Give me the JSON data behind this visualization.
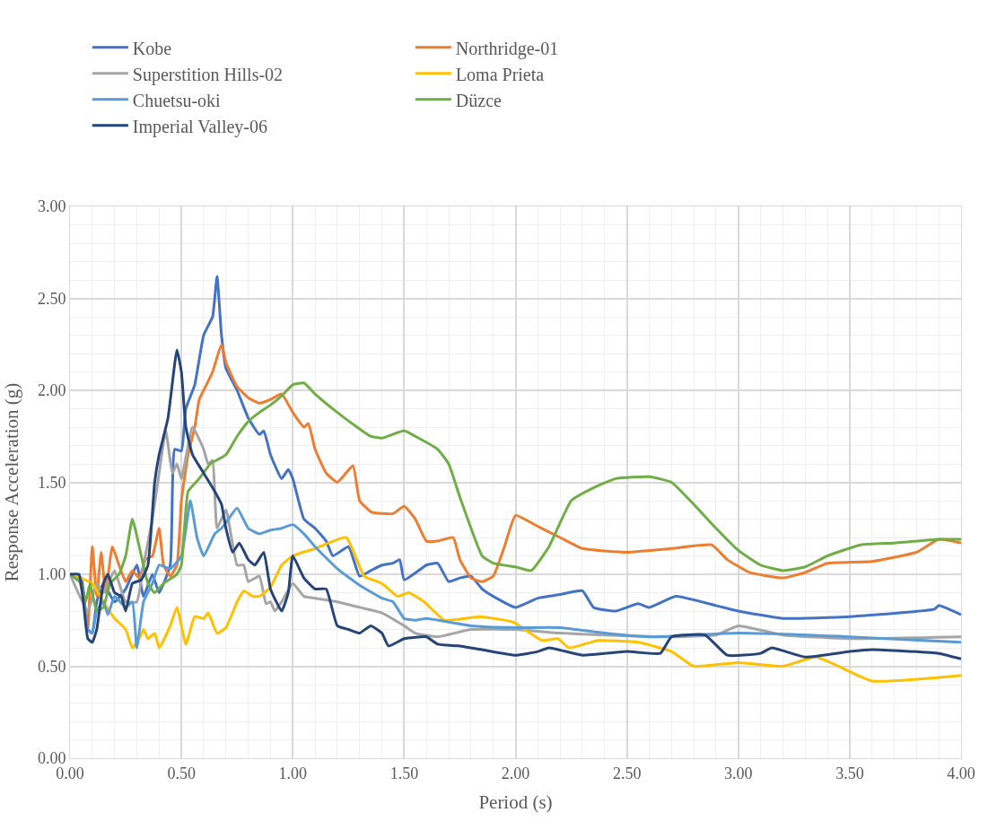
{
  "chart_data": {
    "type": "line",
    "xlabel": "Period (s)",
    "ylabel": "Response Acceleration (g)",
    "xlim": [
      0,
      4
    ],
    "ylim": [
      0,
      3
    ],
    "xticks": [
      {
        "value": 0,
        "label": "0.00"
      },
      {
        "value": 0.5,
        "label": "0.50"
      },
      {
        "value": 1,
        "label": "1.00"
      },
      {
        "value": 1.5,
        "label": "1.50"
      },
      {
        "value": 2,
        "label": "2.00"
      },
      {
        "value": 2.5,
        "label": "2.50"
      },
      {
        "value": 3,
        "label": "3.00"
      },
      {
        "value": 3.5,
        "label": "3.50"
      },
      {
        "value": 4,
        "label": "4.00"
      }
    ],
    "yticks": [
      {
        "value": 0,
        "label": "0.00"
      },
      {
        "value": 0.5,
        "label": "0.50"
      },
      {
        "value": 1,
        "label": "1.00"
      },
      {
        "value": 1.5,
        "label": "1.50"
      },
      {
        "value": 2,
        "label": "2.00"
      },
      {
        "value": 2.5,
        "label": "2.50"
      },
      {
        "value": 3,
        "label": "3.00"
      }
    ],
    "grid": true,
    "legend": "top",
    "marker": "none",
    "line_style": "solid",
    "series": [
      {
        "name": "Kobe",
        "color": "#4472c4",
        "x": [
          0,
          0.05,
          0.08,
          0.1,
          0.12,
          0.15,
          0.2,
          0.25,
          0.3,
          0.33,
          0.37,
          0.4,
          0.45,
          0.47,
          0.5,
          0.52,
          0.56,
          0.6,
          0.64,
          0.66,
          0.68,
          0.7,
          0.75,
          0.8,
          0.85,
          0.87,
          0.9,
          0.95,
          0.98,
          1.0,
          1.05,
          1.1,
          1.15,
          1.18,
          1.25,
          1.3,
          1.35,
          1.4,
          1.45,
          1.48,
          1.5,
          1.6,
          1.65,
          1.7,
          1.75,
          1.8,
          1.85,
          1.9,
          2.0,
          2.1,
          2.2,
          2.3,
          2.35,
          2.45,
          2.55,
          2.6,
          2.72,
          2.9,
          3.0,
          3.2,
          3.5,
          3.88,
          3.9,
          4.0
        ],
        "values": [
          1.0,
          0.98,
          0.7,
          0.68,
          0.85,
          0.95,
          0.85,
          0.92,
          1.05,
          0.88,
          1.0,
          0.9,
          1.05,
          1.68,
          1.67,
          1.9,
          2.03,
          2.3,
          2.4,
          2.62,
          2.3,
          2.12,
          2.0,
          1.85,
          1.76,
          1.78,
          1.65,
          1.52,
          1.57,
          1.52,
          1.3,
          1.25,
          1.18,
          1.1,
          1.15,
          0.99,
          1.02,
          1.05,
          1.06,
          1.08,
          0.97,
          1.05,
          1.06,
          0.96,
          0.98,
          0.99,
          0.92,
          0.88,
          0.82,
          0.87,
          0.89,
          0.91,
          0.82,
          0.8,
          0.84,
          0.82,
          0.88,
          0.83,
          0.8,
          0.76,
          0.77,
          0.81,
          0.83,
          0.78
        ]
      },
      {
        "name": "Northridge-01",
        "color": "#ed7d31",
        "x": [
          0,
          0.04,
          0.07,
          0.08,
          0.1,
          0.12,
          0.14,
          0.16,
          0.19,
          0.22,
          0.25,
          0.28,
          0.31,
          0.34,
          0.37,
          0.4,
          0.42,
          0.45,
          0.48,
          0.5,
          0.53,
          0.56,
          0.58,
          0.6,
          0.64,
          0.68,
          0.7,
          0.75,
          0.8,
          0.85,
          0.9,
          0.95,
          1.0,
          1.05,
          1.07,
          1.1,
          1.15,
          1.2,
          1.27,
          1.3,
          1.35,
          1.4,
          1.45,
          1.5,
          1.55,
          1.6,
          1.65,
          1.72,
          1.75,
          1.8,
          1.85,
          1.9,
          1.95,
          2.0,
          2.1,
          2.2,
          2.3,
          2.5,
          2.7,
          2.88,
          2.95,
          3.05,
          3.2,
          3.3,
          3.4,
          3.6,
          3.8,
          3.9,
          4.0
        ],
        "values": [
          1.0,
          0.97,
          0.8,
          0.7,
          1.15,
          0.88,
          1.12,
          0.9,
          1.15,
          1.05,
          0.96,
          1.02,
          0.98,
          1.08,
          1.1,
          1.25,
          1.05,
          0.99,
          1.05,
          1.4,
          1.65,
          1.8,
          1.95,
          2.0,
          2.1,
          2.25,
          2.15,
          2.02,
          1.96,
          1.93,
          1.95,
          1.98,
          1.88,
          1.8,
          1.82,
          1.68,
          1.55,
          1.5,
          1.59,
          1.4,
          1.34,
          1.33,
          1.33,
          1.37,
          1.3,
          1.18,
          1.18,
          1.2,
          1.08,
          0.98,
          0.96,
          0.99,
          1.15,
          1.32,
          1.26,
          1.2,
          1.14,
          1.12,
          1.14,
          1.16,
          1.08,
          1.01,
          0.98,
          1.01,
          1.06,
          1.07,
          1.12,
          1.19,
          1.17
        ]
      },
      {
        "name": "Superstition Hills-02",
        "color": "#a5a5a5",
        "x": [
          0,
          0.08,
          0.12,
          0.15,
          0.2,
          0.25,
          0.3,
          0.33,
          0.37,
          0.4,
          0.43,
          0.46,
          0.48,
          0.5,
          0.55,
          0.6,
          0.62,
          0.64,
          0.66,
          0.7,
          0.75,
          0.78,
          0.8,
          0.85,
          0.88,
          0.9,
          0.92,
          0.95,
          1.0,
          1.05,
          1.1,
          1.2,
          1.3,
          1.4,
          1.5,
          1.55,
          1.65,
          1.8,
          2.0,
          2.2,
          2.4,
          2.7,
          2.9,
          3.0,
          3.2,
          3.5,
          4.0
        ],
        "values": [
          1.0,
          0.8,
          0.95,
          0.9,
          1.02,
          0.85,
          0.85,
          1.05,
          1.3,
          1.55,
          1.78,
          1.55,
          1.6,
          1.52,
          1.8,
          1.68,
          1.6,
          1.62,
          1.25,
          1.35,
          1.05,
          1.05,
          0.96,
          0.99,
          0.84,
          0.85,
          0.8,
          0.85,
          0.95,
          0.88,
          0.87,
          0.85,
          0.82,
          0.79,
          0.72,
          0.68,
          0.66,
          0.7,
          0.7,
          0.68,
          0.67,
          0.66,
          0.67,
          0.72,
          0.67,
          0.65,
          0.66
        ]
      },
      {
        "name": "Loma Prieta",
        "color": "#ffc000",
        "x": [
          0,
          0.1,
          0.15,
          0.2,
          0.25,
          0.28,
          0.31,
          0.33,
          0.35,
          0.38,
          0.4,
          0.45,
          0.48,
          0.52,
          0.56,
          0.6,
          0.62,
          0.66,
          0.7,
          0.75,
          0.78,
          0.82,
          0.85,
          0.9,
          0.95,
          1.0,
          1.1,
          1.24,
          1.32,
          1.4,
          1.47,
          1.52,
          1.59,
          1.68,
          1.84,
          1.99,
          2.12,
          2.19,
          2.24,
          2.37,
          2.55,
          2.7,
          2.8,
          3.0,
          3.2,
          3.35,
          3.6,
          4.0
        ],
        "values": [
          1.0,
          0.95,
          0.85,
          0.76,
          0.7,
          0.6,
          0.65,
          0.7,
          0.65,
          0.68,
          0.6,
          0.72,
          0.82,
          0.62,
          0.77,
          0.76,
          0.79,
          0.68,
          0.71,
          0.85,
          0.91,
          0.88,
          0.88,
          0.93,
          1.05,
          1.1,
          1.14,
          1.2,
          0.99,
          0.95,
          0.88,
          0.9,
          0.85,
          0.75,
          0.77,
          0.74,
          0.64,
          0.65,
          0.6,
          0.64,
          0.63,
          0.58,
          0.5,
          0.52,
          0.5,
          0.55,
          0.42,
          0.45
        ]
      },
      {
        "name": "Chuetsu-oki",
        "color": "#5b9bd5",
        "x": [
          0,
          0.05,
          0.08,
          0.1,
          0.12,
          0.15,
          0.17,
          0.2,
          0.25,
          0.28,
          0.3,
          0.33,
          0.37,
          0.4,
          0.45,
          0.5,
          0.54,
          0.57,
          0.6,
          0.65,
          0.68,
          0.7,
          0.75,
          0.8,
          0.85,
          0.9,
          0.95,
          1.0,
          1.05,
          1.1,
          1.2,
          1.3,
          1.4,
          1.45,
          1.5,
          1.55,
          1.6,
          1.8,
          2.0,
          2.2,
          2.4,
          2.6,
          3.0,
          3.5,
          4.0
        ],
        "values": [
          1.0,
          0.95,
          0.7,
          0.68,
          0.8,
          0.85,
          0.78,
          0.88,
          0.82,
          0.85,
          0.6,
          0.85,
          0.95,
          1.05,
          1.03,
          1.1,
          1.4,
          1.2,
          1.1,
          1.22,
          1.25,
          1.28,
          1.36,
          1.25,
          1.22,
          1.24,
          1.25,
          1.27,
          1.22,
          1.15,
          1.03,
          0.94,
          0.87,
          0.85,
          0.76,
          0.75,
          0.76,
          0.72,
          0.71,
          0.71,
          0.68,
          0.66,
          0.68,
          0.66,
          0.63
        ]
      },
      {
        "name": "Düzce",
        "color": "#70ad47",
        "x": [
          0,
          0.05,
          0.07,
          0.09,
          0.12,
          0.15,
          0.18,
          0.22,
          0.25,
          0.28,
          0.32,
          0.35,
          0.38,
          0.42,
          0.48,
          0.5,
          0.53,
          0.58,
          0.63,
          0.7,
          0.75,
          0.8,
          0.85,
          0.9,
          0.95,
          1.0,
          1.05,
          1.1,
          1.2,
          1.3,
          1.35,
          1.4,
          1.5,
          1.55,
          1.65,
          1.7,
          1.75,
          1.85,
          1.9,
          2.0,
          2.07,
          2.15,
          2.25,
          2.35,
          2.45,
          2.6,
          2.7,
          2.8,
          2.9,
          3.0,
          3.1,
          3.2,
          3.3,
          3.4,
          3.55,
          3.7,
          3.9,
          4.0
        ],
        "values": [
          1.0,
          0.95,
          0.85,
          0.95,
          0.8,
          0.82,
          0.95,
          1.0,
          1.1,
          1.3,
          1.1,
          0.95,
          0.9,
          0.95,
          1.0,
          1.05,
          1.45,
          1.52,
          1.6,
          1.65,
          1.75,
          1.83,
          1.88,
          1.92,
          1.97,
          2.03,
          2.04,
          1.98,
          1.88,
          1.79,
          1.75,
          1.74,
          1.78,
          1.75,
          1.68,
          1.6,
          1.42,
          1.1,
          1.06,
          1.04,
          1.02,
          1.15,
          1.4,
          1.47,
          1.52,
          1.53,
          1.5,
          1.38,
          1.25,
          1.13,
          1.05,
          1.02,
          1.04,
          1.1,
          1.16,
          1.17,
          1.19,
          1.19
        ]
      },
      {
        "name": "Imperial Valley-06",
        "color": "#264478",
        "x": [
          0,
          0.04,
          0.06,
          0.08,
          0.1,
          0.12,
          0.15,
          0.17,
          0.2,
          0.23,
          0.25,
          0.28,
          0.32,
          0.35,
          0.38,
          0.4,
          0.44,
          0.48,
          0.5,
          0.52,
          0.55,
          0.6,
          0.65,
          0.68,
          0.7,
          0.73,
          0.76,
          0.8,
          0.83,
          0.87,
          0.9,
          0.95,
          0.98,
          1.0,
          1.05,
          1.1,
          1.15,
          1.2,
          1.25,
          1.3,
          1.35,
          1.4,
          1.43,
          1.5,
          1.6,
          1.65,
          1.75,
          1.85,
          2.0,
          2.1,
          2.15,
          2.3,
          2.5,
          2.65,
          2.7,
          2.85,
          2.95,
          3.1,
          3.15,
          3.3,
          3.5,
          3.6,
          3.9,
          4.0
        ],
        "values": [
          1.0,
          1.0,
          0.85,
          0.65,
          0.63,
          0.7,
          0.95,
          1.0,
          0.9,
          0.88,
          0.8,
          0.95,
          0.97,
          1.05,
          1.5,
          1.65,
          1.85,
          2.22,
          2.1,
          1.8,
          1.65,
          1.55,
          1.45,
          1.38,
          1.25,
          1.12,
          1.17,
          1.08,
          1.05,
          1.12,
          0.92,
          0.8,
          0.9,
          1.1,
          0.98,
          0.92,
          0.92,
          0.72,
          0.7,
          0.68,
          0.72,
          0.68,
          0.61,
          0.65,
          0.66,
          0.62,
          0.61,
          0.59,
          0.56,
          0.58,
          0.6,
          0.56,
          0.58,
          0.57,
          0.66,
          0.67,
          0.56,
          0.57,
          0.6,
          0.55,
          0.58,
          0.59,
          0.57,
          0.54
        ]
      }
    ]
  }
}
